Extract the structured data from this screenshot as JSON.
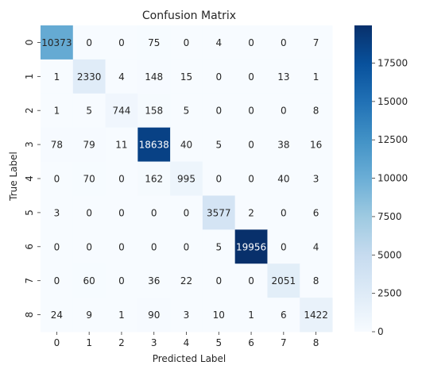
{
  "chart_data": {
    "type": "heatmap",
    "title": "Confusion Matrix",
    "xlabel": "Predicted Label",
    "ylabel": "True Label",
    "x_categories": [
      "0",
      "1",
      "2",
      "3",
      "4",
      "5",
      "6",
      "7",
      "8"
    ],
    "y_categories": [
      "0",
      "1",
      "2",
      "3",
      "4",
      "5",
      "6",
      "7",
      "8"
    ],
    "matrix": [
      [
        10373,
        0,
        0,
        75,
        0,
        4,
        0,
        0,
        7
      ],
      [
        1,
        2330,
        4,
        148,
        15,
        0,
        0,
        13,
        1
      ],
      [
        1,
        5,
        744,
        158,
        5,
        0,
        0,
        0,
        8
      ],
      [
        78,
        79,
        11,
        18638,
        40,
        5,
        0,
        38,
        16
      ],
      [
        0,
        70,
        0,
        162,
        995,
        0,
        0,
        40,
        3
      ],
      [
        3,
        0,
        0,
        0,
        0,
        3577,
        2,
        0,
        6
      ],
      [
        0,
        0,
        0,
        0,
        0,
        5,
        19956,
        0,
        4
      ],
      [
        0,
        60,
        0,
        36,
        22,
        0,
        0,
        2051,
        8
      ],
      [
        24,
        9,
        1,
        90,
        3,
        10,
        1,
        6,
        1422
      ]
    ],
    "colormap": "Blues",
    "colorbar": {
      "range": [
        0,
        19956
      ],
      "ticks": [
        0,
        2500,
        5000,
        7500,
        10000,
        12500,
        15000,
        17500
      ]
    },
    "grid": false
  }
}
